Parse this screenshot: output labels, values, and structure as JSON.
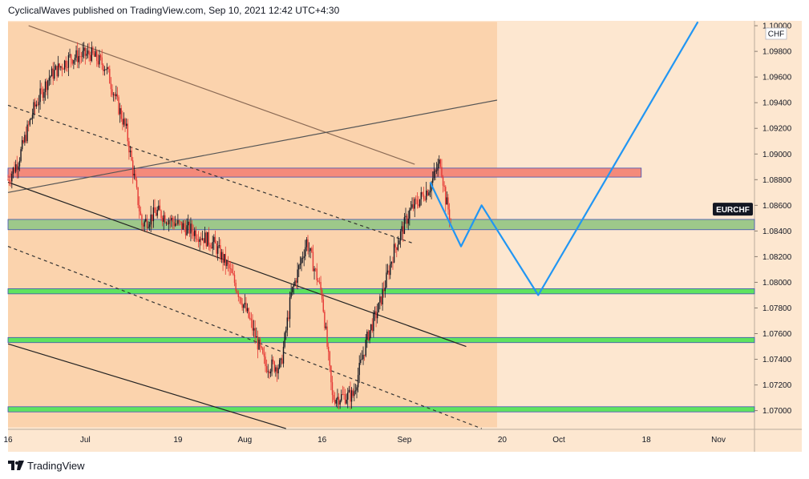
{
  "header": {
    "text": "CyclicalWaves published on TradingView.com, Sep 10, 2021 12:42 UTC+4:30"
  },
  "footer": {
    "brand": "TradingView",
    "logo_icon": "tradingview-logo-icon"
  },
  "colors": {
    "background": "#fde7d0",
    "dark_zone": "#fbd3ad",
    "candle_up": "#131722",
    "candle_down": "#e53935",
    "projection": "#2196f3",
    "red_zone": "#f48a7a",
    "olive_zone": "#9dc88a",
    "green_band": "#5fe35f"
  },
  "chart_data": {
    "type": "candlestick",
    "symbol": "EURCHF",
    "currency": "CHF",
    "y_axis": {
      "min": 1.06854,
      "max": 1.10038,
      "ticks": [
        "1.10000",
        "1.09800",
        "1.09600",
        "1.09400",
        "1.09200",
        "1.09000",
        "1.08800",
        "1.08600",
        "1.08400",
        "1.08200",
        "1.08000",
        "1.07800",
        "1.07600",
        "1.07400",
        "1.07200",
        "1.07000"
      ],
      "top_label": "1.10000"
    },
    "x_axis": {
      "labels": [
        "16",
        "Jul",
        "19",
        "Aug",
        "16",
        "Sep",
        "20",
        "Oct",
        "18",
        "Nov"
      ],
      "label_dates": [
        "2021-06-16",
        "2021-07-01",
        "2021-07-19",
        "2021-08-01",
        "2021-08-16",
        "2021-09-01",
        "2021-09-20",
        "2021-10-01",
        "2021-10-18",
        "2021-11-01"
      ],
      "start_date": "2021-06-16",
      "end_date": "2021-11-08"
    },
    "last_price_label": "EURCHF",
    "last_price": 1.0849,
    "price_path": [
      {
        "date": "2021-06-16",
        "price": 1.088
      },
      {
        "date": "2021-06-18",
        "price": 1.0895
      },
      {
        "date": "2021-06-21",
        "price": 1.0935
      },
      {
        "date": "2021-06-24",
        "price": 1.096
      },
      {
        "date": "2021-06-28",
        "price": 1.0975
      },
      {
        "date": "2021-07-02",
        "price": 1.0978
      },
      {
        "date": "2021-07-05",
        "price": 1.0968
      },
      {
        "date": "2021-07-07",
        "price": 1.0942
      },
      {
        "date": "2021-07-09",
        "price": 1.0918
      },
      {
        "date": "2021-07-12",
        "price": 1.0845
      },
      {
        "date": "2021-07-15",
        "price": 1.0855
      },
      {
        "date": "2021-07-19",
        "price": 1.0845
      },
      {
        "date": "2021-07-22",
        "price": 1.084
      },
      {
        "date": "2021-07-26",
        "price": 1.083
      },
      {
        "date": "2021-07-29",
        "price": 1.081
      },
      {
        "date": "2021-08-02",
        "price": 1.077
      },
      {
        "date": "2021-08-05",
        "price": 1.0735
      },
      {
        "date": "2021-08-08",
        "price": 1.0735
      },
      {
        "date": "2021-08-10",
        "price": 1.079
      },
      {
        "date": "2021-08-13",
        "price": 1.0832
      },
      {
        "date": "2021-08-16",
        "price": 1.079
      },
      {
        "date": "2021-08-18",
        "price": 1.071
      },
      {
        "date": "2021-08-22",
        "price": 1.0712
      },
      {
        "date": "2021-08-25",
        "price": 1.076
      },
      {
        "date": "2021-08-27",
        "price": 1.078
      },
      {
        "date": "2021-08-30",
        "price": 1.0825
      },
      {
        "date": "2021-09-02",
        "price": 1.0855
      },
      {
        "date": "2021-09-06",
        "price": 1.0875
      },
      {
        "date": "2021-09-08",
        "price": 1.0895
      },
      {
        "date": "2021-09-09",
        "price": 1.0865
      },
      {
        "date": "2021-09-10",
        "price": 1.0849
      }
    ],
    "horizontal_zones": [
      {
        "name": "resistance-zone",
        "start": "2021-06-16",
        "end": "2021-10-17",
        "y_low": 1.0882,
        "y_high": 1.0889,
        "color": "#f48a7a"
      },
      {
        "name": "support-zone",
        "start": "2021-06-16",
        "end": "2021-11-08",
        "y_low": 1.0841,
        "y_high": 1.0849,
        "color": "#9dc88a"
      },
      {
        "name": "green-band-1",
        "start": "2021-06-16",
        "end": "2021-11-14",
        "y_low": 1.0791,
        "y_high": 1.0795,
        "color": "#5fe35f"
      },
      {
        "name": "green-band-2",
        "start": "2021-06-16",
        "end": "2021-11-14",
        "y_low": 1.0753,
        "y_high": 1.0757,
        "color": "#5fe35f"
      },
      {
        "name": "green-band-3",
        "start": "2021-06-16",
        "end": "2021-11-14",
        "y_low": 1.0699,
        "y_high": 1.0703,
        "color": "#5fe35f"
      }
    ],
    "shaded_regions": [
      {
        "name": "upper-dark-region",
        "start": "2021-06-16",
        "end": "2021-09-19",
        "y_low": 1.0841,
        "y_high": 1.1003
      },
      {
        "name": "lower-dark-region",
        "start": "2021-06-16",
        "end": "2021-09-19",
        "y_low": 1.0687,
        "y_high": 1.0841
      }
    ],
    "trend_lines": [
      {
        "name": "upper-channel-line",
        "style": "solid",
        "color": "#8a6a55",
        "points": [
          [
            "2021-06-20",
            1.1
          ],
          [
            "2021-09-03",
            1.0892
          ]
        ]
      },
      {
        "name": "dashed-channel-top",
        "style": "dashed",
        "color": "#333333",
        "points": [
          [
            "2021-06-16",
            1.0938
          ],
          [
            "2021-09-03",
            1.083
          ]
        ]
      },
      {
        "name": "rising-line",
        "style": "solid",
        "color": "#555555",
        "points": [
          [
            "2021-06-16",
            1.087
          ],
          [
            "2021-09-19",
            1.0942
          ]
        ]
      },
      {
        "name": "main-channel-line",
        "style": "solid",
        "color": "#222222",
        "points": [
          [
            "2021-06-16",
            1.0878
          ],
          [
            "2021-09-13",
            1.075
          ]
        ]
      },
      {
        "name": "dashed-channel-bottom",
        "style": "dashed",
        "color": "#333333",
        "points": [
          [
            "2021-06-16",
            1.0828
          ],
          [
            "2021-09-16",
            1.0686
          ]
        ]
      },
      {
        "name": "lower-channel-line",
        "style": "solid",
        "color": "#222222",
        "points": [
          [
            "2021-06-16",
            1.0752
          ],
          [
            "2021-08-09",
            1.0686
          ]
        ]
      }
    ],
    "projection_path": [
      [
        "2021-09-06",
        1.0878
      ],
      [
        "2021-09-12",
        1.0828
      ],
      [
        "2021-09-16",
        1.086
      ],
      [
        "2021-09-27",
        1.079
      ],
      [
        "2021-10-28",
        1.1003
      ]
    ]
  }
}
